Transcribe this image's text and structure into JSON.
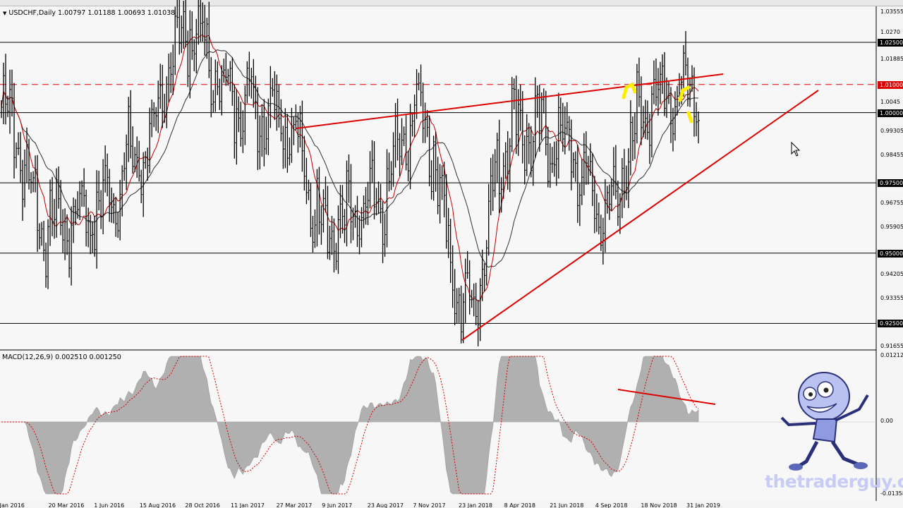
{
  "chart_header": {
    "symbol_line": "USDCHF,Daily  1.00797 1.01188 1.00693 1.01038",
    "collapse_icon": "triangle-down-icon"
  },
  "macd_header": "MACD(12,26,9) 0.002510 0.001250",
  "price_axis": {
    "ticks": [
      "1.03555",
      "1.01885",
      "0.99305",
      "0.98455",
      "0.96755",
      "0.95905",
      "0.94205",
      "0.93355",
      "0.91655"
    ],
    "level_labels": [
      "1.02500",
      "1.01000",
      "1.00000",
      "0.97500",
      "0.95000",
      "0.92500"
    ],
    "partial_labels": [
      "1.0270",
      "1.0045"
    ]
  },
  "macd_axis": {
    "ticks": [
      "0.01212",
      "0.00",
      "-0.01358"
    ]
  },
  "date_axis": [
    "5 Jan 2016",
    "20 Mar 2016",
    "1 Jun 2016",
    "15 Aug 2016",
    "28 Oct 2016",
    "11 Jan 2017",
    "27 Mar 2017",
    "9 Jun 2017",
    "23 Aug 2017",
    "7 Nov 2017",
    "23 Jan 2018",
    "8 Apr 2018",
    "21 Jun 2018",
    "4 Sep 2018",
    "18 Nov 2018",
    "31 Jan 2019"
  ],
  "watermark": "thetraderguy.com",
  "colors": {
    "level_line": "#000000",
    "resistance_dashed": "#e00000",
    "trendline": "#dd0000",
    "ma_fast": "#c00000",
    "ma_slow": "#303030",
    "highlight": "#ffee00",
    "macd_hist": "#b0b0b0",
    "macd_signal": "#d00000"
  },
  "chart_data": {
    "type": "line",
    "title": "USDCHF,Daily",
    "ohlc": {
      "open": 1.00797,
      "high": 1.01188,
      "low": 1.00693,
      "close": 1.01038
    },
    "horizontal_levels": [
      1.025,
      1.01,
      1.0,
      0.975,
      0.95,
      0.925
    ],
    "dashed_resistance": 1.01,
    "y_range": [
      0.91655,
      1.03555
    ],
    "x": [
      "5 Jan 2016",
      "20 Mar 2016",
      "1 Jun 2016",
      "15 Aug 2016",
      "28 Oct 2016",
      "11 Jan 2017",
      "27 Mar 2017",
      "9 Jun 2017",
      "23 Aug 2017",
      "7 Nov 2017",
      "23 Jan 2018",
      "8 Apr 2018",
      "21 Jun 2018",
      "4 Sep 2018",
      "18 Nov 2018",
      "31 Jan 2019"
    ],
    "series": [
      {
        "values": [
          1.002,
          0.96,
          0.965,
          0.985,
          1.03,
          1.005,
          1.0,
          0.96,
          0.965,
          1.0,
          0.93,
          0.995,
          0.99,
          0.965,
          1.005,
          1.01
        ]
      }
    ],
    "macd": {
      "indicator": "MACD(12,26,9)",
      "main": 0.00251,
      "signal": 0.00125,
      "y_range": [
        -0.01358,
        0.01212
      ]
    }
  }
}
